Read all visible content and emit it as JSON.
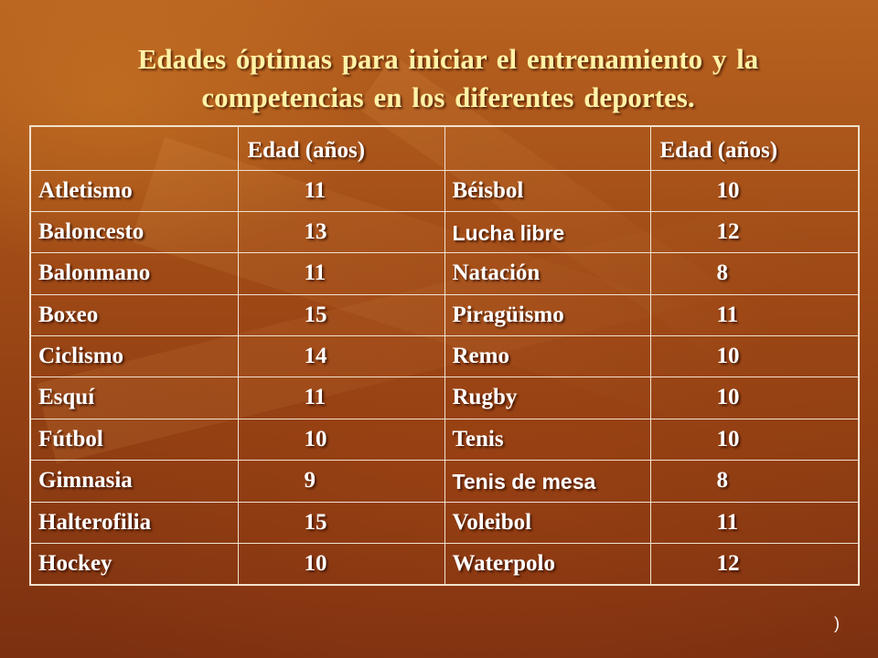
{
  "title": {
    "line1": "Edades óptimas para iniciar el entrenamiento y la",
    "line2": "competencias en los diferentes deportes."
  },
  "table": {
    "headers": [
      "",
      "Edad (años)",
      "",
      "Edad (años)"
    ],
    "rows": [
      {
        "sport_a": "Atletismo",
        "age_a": "11",
        "sport_b": "Béisbol",
        "age_b": "10"
      },
      {
        "sport_a": "Baloncesto",
        "age_a": "13",
        "sport_b": "Lucha libre",
        "age_b": "12"
      },
      {
        "sport_a": "Balonmano",
        "age_a": "11",
        "sport_b": "Natación",
        "age_b": "8"
      },
      {
        "sport_a": "Boxeo",
        "age_a": "15",
        "sport_b": "Piragüismo",
        "age_b": "11"
      },
      {
        "sport_a": "Ciclismo",
        "age_a": "14",
        "sport_b": "Remo",
        "age_b": "10"
      },
      {
        "sport_a": "Esquí",
        "age_a": "11",
        "sport_b": "Rugby",
        "age_b": "10"
      },
      {
        "sport_a": "Fútbol",
        "age_a": "10",
        "sport_b": "Tenis",
        "age_b": "10"
      },
      {
        "sport_a": "Gimnasia",
        "age_a": "9",
        "sport_b": "Tenis de mesa",
        "age_b": "8"
      },
      {
        "sport_a": "Halterofilia",
        "age_a": "15",
        "sport_b": "Voleibol",
        "age_b": "11"
      },
      {
        "sport_a": "Hockey",
        "age_a": "10",
        "sport_b": "Waterpolo",
        "age_b": "12"
      }
    ]
  },
  "corner_mark": ")",
  "colors": {
    "title_text": "#fff2a6",
    "cell_text": "#ffffff",
    "grid_lines": "#f0e2cf",
    "background": "#9d4815"
  }
}
